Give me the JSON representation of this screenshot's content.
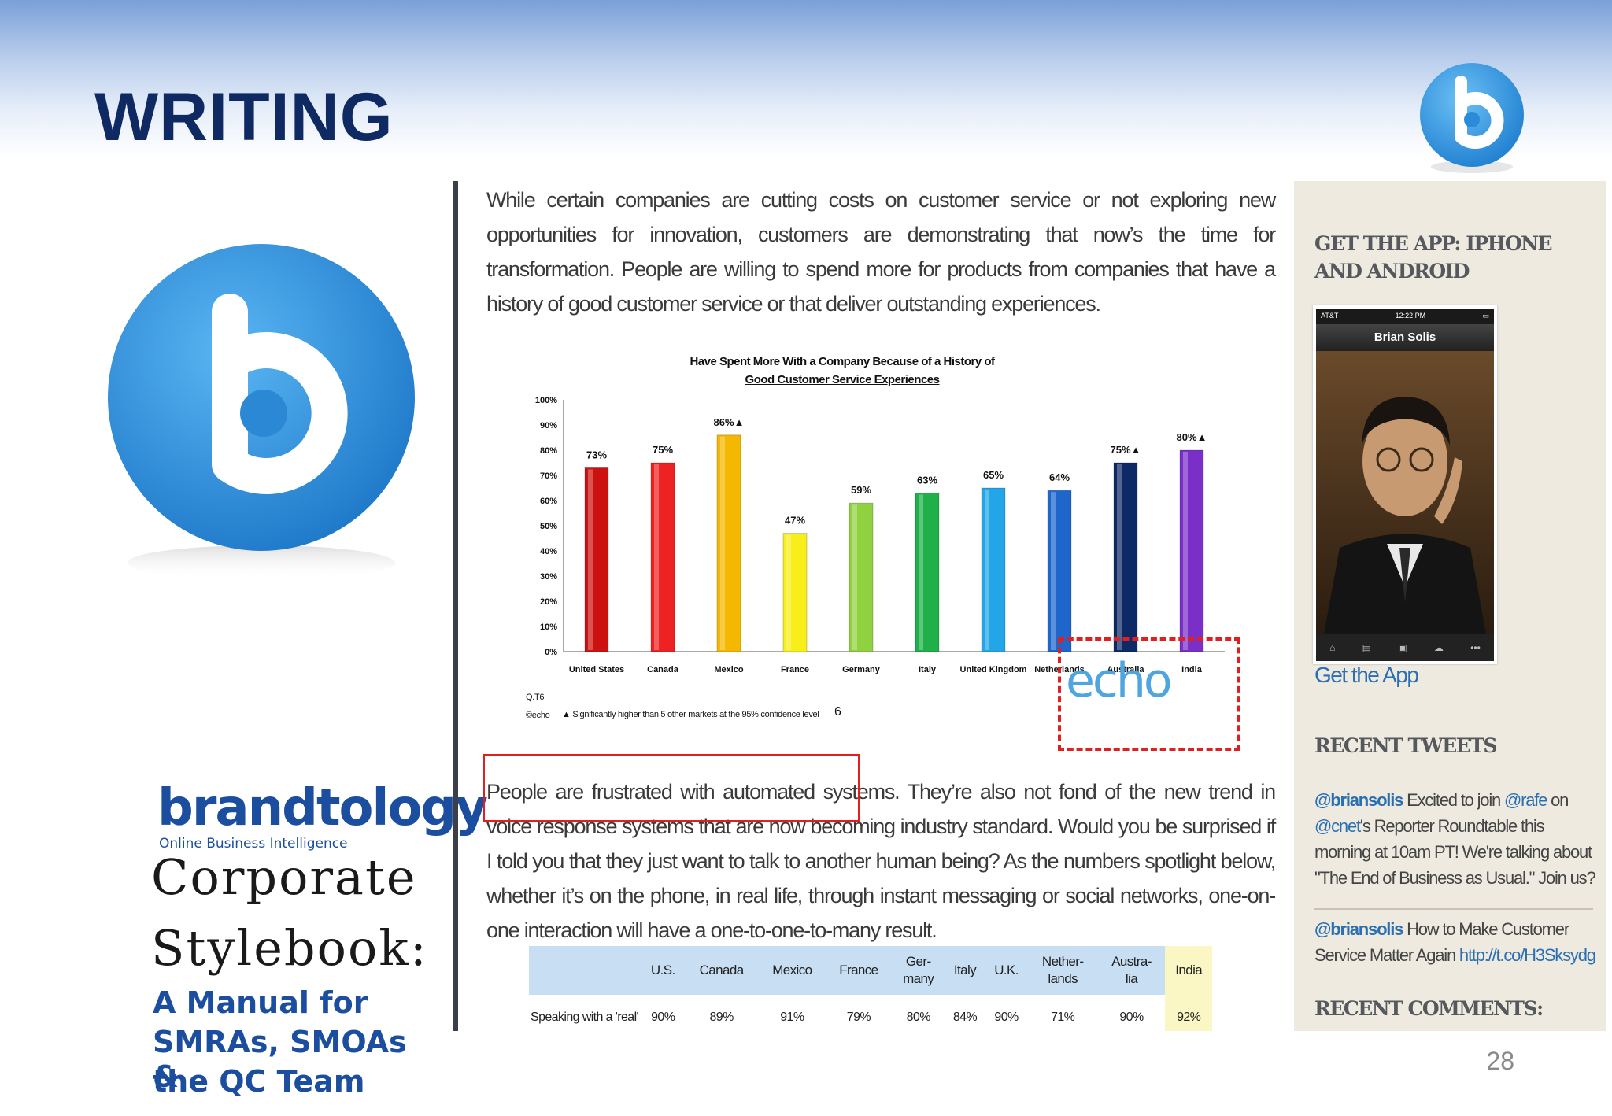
{
  "slide": {
    "title": "WRITING",
    "page_number": "28"
  },
  "left_panel": {
    "brand_name": "brandtology",
    "brand_tagline": "Online Business Intelligence",
    "title_line1": "Corporate",
    "title_line2": "Stylebook:",
    "subtitle_line1": "A Manual for",
    "subtitle_line2": "SMRAs, SMOAs &",
    "subtitle_line3": "the QC Team"
  },
  "article": {
    "para1": "While certain companies are cutting costs on customer service or not exploring new opportunities for innovation, customers are demonstrating that now’s the time for transformation. People are willing to spend more for products from companies that have a history of good customer service or that deliver outstanding experiences.",
    "para2": "People are frustrated with automated systems. They’re also not fond of the new trend in voice response systems that are now becoming industry standard. Would you be surprised if I told you that they just want to talk to another human being? As the numbers spotlight below, whether it’s on the phone, in real life, through instant messaging or social networks, one-on-one interaction will have a one-to-one-to-many result."
  },
  "chart_data": {
    "type": "bar",
    "title": "Have Spent More With a Company Because of a History of",
    "title_line2": "Good Customer Service Experiences",
    "categories": [
      "United States",
      "Canada",
      "Mexico",
      "France",
      "Germany",
      "Italy",
      "United Kingdom",
      "Netherlands",
      "Australia",
      "India"
    ],
    "values": [
      73,
      75,
      86,
      47,
      59,
      63,
      65,
      64,
      75,
      80
    ],
    "data_labels": [
      "73%",
      "75%",
      "86%▲",
      "47%",
      "59%",
      "63%",
      "65%",
      "64%",
      "75%▲",
      "80%▲"
    ],
    "colors": [
      "#cc1111",
      "#ee2222",
      "#f5b800",
      "#f7ee1a",
      "#8fd13f",
      "#1fb04a",
      "#22a6e8",
      "#1e66cc",
      "#0e2a66",
      "#7a2fc9"
    ],
    "ylim": [
      0,
      100
    ],
    "y_ticks": [
      "0%",
      "10%",
      "20%",
      "30%",
      "40%",
      "50%",
      "60%",
      "70%",
      "80%",
      "90%",
      "100%"
    ],
    "footnote_left1": "Q.T6",
    "footnote_left2": "©echo",
    "footnote": "▲ Significantly higher than 5 other markets at the 95% confidence level",
    "slide_no": "6",
    "brand": "echo"
  },
  "table": {
    "headers": [
      "",
      "U.S.",
      "Canada",
      "Mexico",
      "France",
      "Ger-\nmany",
      "Italy",
      "U.K.",
      "Nether-\nlands",
      "Austra-\nlia",
      "India"
    ],
    "row_label": "Speaking with a 'real'",
    "row_values": [
      "90%",
      "89%",
      "91%",
      "79%",
      "80%",
      "84%",
      "90%",
      "71%",
      "90%",
      "92%"
    ]
  },
  "sidebar": {
    "get_app_heading": "GET THE APP: IPHONE AND ANDROID",
    "phone_carrier": "AT&T",
    "phone_time": "12:22 PM",
    "phone_title": "Brian Solis",
    "get_app_link": "Get the App",
    "recent_tweets_heading": "RECENT TWEETS",
    "tweet1": {
      "handle": "@briansolis",
      "text_a": " Excited to join ",
      "mention1": "@rafe",
      "text_b": " on ",
      "mention2": "@cnet",
      "text_c": "'s Reporter Roundtable this morning at 10am PT! We're talking about \"The End of Business as Usual.\" Join us?"
    },
    "tweet2": {
      "handle": "@briansolis",
      "text": " How to Make Customer Service Matter Again ",
      "link": "http://t.co/H3Sksydg"
    },
    "recent_comments_heading": "RECENT COMMENTS:"
  },
  "colors": {
    "title": "#0f2a63",
    "brand_blue": "#1c4ea0",
    "logo_blue": "#2a8bd8",
    "link_blue": "#2b6fb3",
    "highlight_red": "#e02020",
    "sidebar_bg": "#eeeae0"
  }
}
